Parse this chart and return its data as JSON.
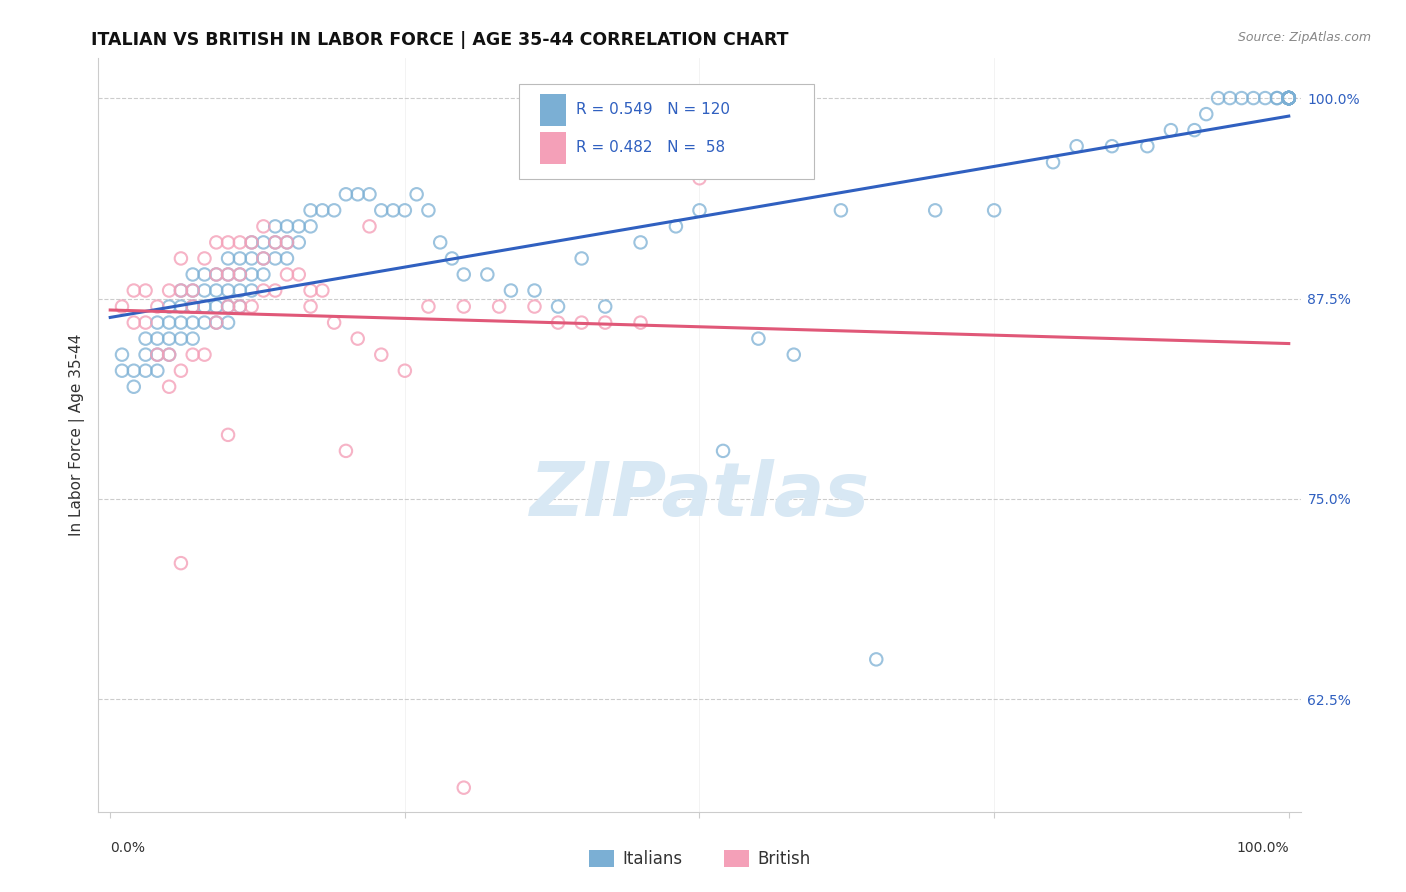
{
  "title": "ITALIAN VS BRITISH IN LABOR FORCE | AGE 35-44 CORRELATION CHART",
  "source": "Source: ZipAtlas.com",
  "ylabel": "In Labor Force | Age 35-44",
  "xlim": [
    -0.01,
    1.01
  ],
  "ylim": [
    0.555,
    1.025
  ],
  "ytick_values": [
    0.625,
    0.75,
    0.875,
    1.0
  ],
  "ytick_labels": [
    "62.5%",
    "75.0%",
    "87.5%",
    "100.0%"
  ],
  "xtick_left_label": "0.0%",
  "xtick_right_label": "100.0%",
  "italian_R": 0.549,
  "italian_N": 120,
  "british_R": 0.482,
  "british_N": 58,
  "italian_color": "#7BAFD4",
  "british_color": "#F4A0B8",
  "trend_italian_color": "#3060C0",
  "trend_british_color": "#E05878",
  "scatter_alpha": 0.45,
  "scatter_size": 80,
  "background_color": "#FFFFFF",
  "grid_color": "#CCCCCC",
  "title_color": "#111111",
  "axis_label_color": "#333333",
  "ytick_color": "#3060C0",
  "watermark_text": "ZIPatlas",
  "watermark_color": "#D8E8F4",
  "legend_R_color": "#3060C0",
  "italian_x": [
    0.01,
    0.01,
    0.02,
    0.02,
    0.03,
    0.03,
    0.03,
    0.04,
    0.04,
    0.04,
    0.04,
    0.05,
    0.05,
    0.05,
    0.05,
    0.06,
    0.06,
    0.06,
    0.06,
    0.07,
    0.07,
    0.07,
    0.07,
    0.07,
    0.08,
    0.08,
    0.08,
    0.08,
    0.09,
    0.09,
    0.09,
    0.09,
    0.1,
    0.1,
    0.1,
    0.1,
    0.1,
    0.11,
    0.11,
    0.11,
    0.11,
    0.12,
    0.12,
    0.12,
    0.12,
    0.13,
    0.13,
    0.13,
    0.14,
    0.14,
    0.14,
    0.15,
    0.15,
    0.15,
    0.16,
    0.16,
    0.17,
    0.17,
    0.18,
    0.19,
    0.2,
    0.21,
    0.22,
    0.23,
    0.24,
    0.25,
    0.26,
    0.27,
    0.28,
    0.29,
    0.3,
    0.32,
    0.34,
    0.36,
    0.38,
    0.4,
    0.42,
    0.45,
    0.48,
    0.5,
    0.52,
    0.55,
    0.58,
    0.62,
    0.65,
    0.7,
    0.75,
    0.8,
    0.82,
    0.85,
    0.88,
    0.9,
    0.92,
    0.93,
    0.94,
    0.95,
    0.96,
    0.97,
    0.98,
    0.99,
    0.99,
    1.0,
    1.0,
    1.0,
    1.0,
    1.0,
    1.0,
    1.0,
    1.0,
    1.0,
    1.0,
    1.0,
    1.0,
    1.0,
    1.0,
    1.0,
    1.0,
    1.0,
    1.0,
    1.0
  ],
  "italian_y": [
    0.84,
    0.83,
    0.83,
    0.82,
    0.85,
    0.84,
    0.83,
    0.86,
    0.85,
    0.84,
    0.83,
    0.87,
    0.86,
    0.85,
    0.84,
    0.88,
    0.87,
    0.86,
    0.85,
    0.89,
    0.88,
    0.87,
    0.86,
    0.85,
    0.89,
    0.88,
    0.87,
    0.86,
    0.89,
    0.88,
    0.87,
    0.86,
    0.9,
    0.89,
    0.88,
    0.87,
    0.86,
    0.9,
    0.89,
    0.88,
    0.87,
    0.91,
    0.9,
    0.89,
    0.88,
    0.91,
    0.9,
    0.89,
    0.92,
    0.91,
    0.9,
    0.92,
    0.91,
    0.9,
    0.92,
    0.91,
    0.93,
    0.92,
    0.93,
    0.93,
    0.94,
    0.94,
    0.94,
    0.93,
    0.93,
    0.93,
    0.94,
    0.93,
    0.91,
    0.9,
    0.89,
    0.89,
    0.88,
    0.88,
    0.87,
    0.9,
    0.87,
    0.91,
    0.92,
    0.93,
    0.78,
    0.85,
    0.84,
    0.93,
    0.65,
    0.93,
    0.93,
    0.96,
    0.97,
    0.97,
    0.97,
    0.98,
    0.98,
    0.99,
    1.0,
    1.0,
    1.0,
    1.0,
    1.0,
    1.0,
    1.0,
    1.0,
    1.0,
    1.0,
    1.0,
    1.0,
    1.0,
    1.0,
    1.0,
    1.0,
    1.0,
    1.0,
    1.0,
    1.0,
    1.0,
    1.0,
    1.0,
    1.0,
    1.0,
    1.0
  ],
  "british_x": [
    0.01,
    0.02,
    0.02,
    0.03,
    0.03,
    0.04,
    0.04,
    0.05,
    0.05,
    0.05,
    0.06,
    0.06,
    0.06,
    0.07,
    0.07,
    0.07,
    0.08,
    0.08,
    0.09,
    0.09,
    0.09,
    0.1,
    0.1,
    0.1,
    0.11,
    0.11,
    0.11,
    0.12,
    0.12,
    0.13,
    0.13,
    0.13,
    0.14,
    0.14,
    0.15,
    0.15,
    0.16,
    0.17,
    0.17,
    0.18,
    0.19,
    0.2,
    0.21,
    0.22,
    0.23,
    0.25,
    0.27,
    0.3,
    0.33,
    0.36,
    0.38,
    0.4,
    0.42,
    0.45,
    0.5,
    0.3,
    0.1,
    0.06
  ],
  "british_y": [
    0.87,
    0.86,
    0.88,
    0.88,
    0.86,
    0.87,
    0.84,
    0.88,
    0.84,
    0.82,
    0.9,
    0.88,
    0.83,
    0.88,
    0.87,
    0.84,
    0.9,
    0.84,
    0.91,
    0.89,
    0.86,
    0.91,
    0.89,
    0.87,
    0.91,
    0.89,
    0.87,
    0.91,
    0.87,
    0.92,
    0.9,
    0.88,
    0.91,
    0.88,
    0.91,
    0.89,
    0.89,
    0.88,
    0.87,
    0.88,
    0.86,
    0.78,
    0.85,
    0.92,
    0.84,
    0.83,
    0.87,
    0.87,
    0.87,
    0.87,
    0.86,
    0.86,
    0.86,
    0.86,
    0.95,
    0.57,
    0.79,
    0.71
  ]
}
